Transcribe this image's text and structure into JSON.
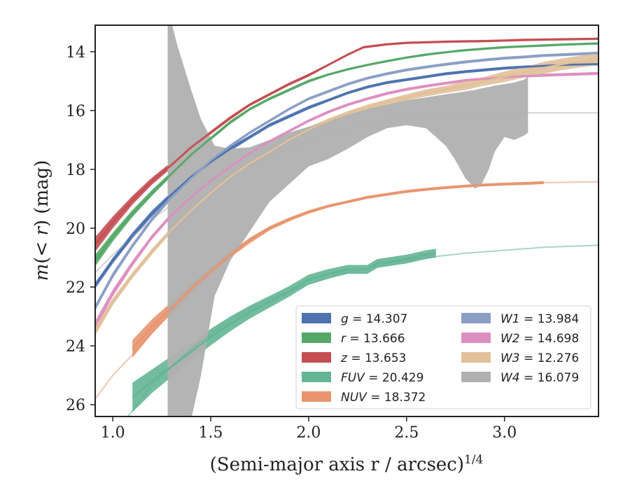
{
  "chart_data": {
    "type": "line",
    "xlabel": "(Semi-major axis r / arcsec)",
    "xlabel_superscript": "1/4",
    "ylabel": "m(< r) (mag)",
    "xlim": [
      0.91,
      3.48
    ],
    "ylim": [
      26.4,
      13.1
    ],
    "y_inverted": true,
    "xticks": [
      1.0,
      1.5,
      2.0,
      2.5,
      3.0
    ],
    "xtick_labels": [
      "1.0",
      "1.5",
      "2.0",
      "2.5",
      "3.0"
    ],
    "yticks": [
      14,
      16,
      18,
      20,
      22,
      24,
      26
    ],
    "ytick_labels": [
      "14",
      "16",
      "18",
      "20",
      "22",
      "24",
      "26"
    ],
    "grid": false,
    "legend_position": "lower-right",
    "legend_columns": 2,
    "series": [
      {
        "name": "g = 14.307",
        "label_var": "g",
        "label_val": "14.307",
        "color": "#4c72b0",
        "x": [
          0.91,
          1.0,
          1.1,
          1.2,
          1.3,
          1.4,
          1.5,
          1.6,
          1.7,
          1.8,
          1.9,
          2.0,
          2.1,
          2.2,
          2.3,
          2.4,
          2.5,
          2.6,
          2.7,
          2.8,
          2.9,
          3.0,
          3.1,
          3.2,
          3.3,
          3.48
        ],
        "y": [
          21.95,
          21.1,
          20.25,
          19.5,
          18.85,
          18.25,
          17.75,
          17.3,
          16.9,
          16.5,
          16.2,
          15.9,
          15.65,
          15.4,
          15.2,
          15.05,
          14.95,
          14.85,
          14.75,
          14.68,
          14.62,
          14.56,
          14.52,
          14.48,
          14.45,
          14.42
        ],
        "band": [
          0.1,
          0.1,
          0.1,
          0.1,
          0.08,
          0.08,
          0.08,
          0.08,
          0.06,
          0.06,
          0.06,
          0.06,
          0.05,
          0.05,
          0.05,
          0.05,
          0.05,
          0.05,
          0.05,
          0.05,
          0.05,
          0.05,
          0.05,
          0.05,
          0.05,
          0.05
        ],
        "ext_end": 3.48
      },
      {
        "name": "r = 13.666",
        "label_var": "r",
        "label_val": "13.666",
        "color": "#55a868",
        "x": [
          0.91,
          1.0,
          1.1,
          1.2,
          1.3,
          1.4,
          1.5,
          1.6,
          1.7,
          1.8,
          1.9,
          2.0,
          2.1,
          2.2,
          2.3,
          2.4,
          2.5,
          2.6,
          2.7,
          2.8,
          2.9,
          3.0,
          3.1,
          3.2,
          3.3,
          3.48
        ],
        "y": [
          21.1,
          20.3,
          19.5,
          18.8,
          18.15,
          17.5,
          16.95,
          16.4,
          15.95,
          15.6,
          15.3,
          15.0,
          14.78,
          14.6,
          14.45,
          14.32,
          14.2,
          14.1,
          14.02,
          13.95,
          13.9,
          13.85,
          13.82,
          13.79,
          13.76,
          13.72
        ],
        "band": [
          0.2,
          0.15,
          0.12,
          0.1,
          0.08,
          0.08,
          0.06,
          0.06,
          0.05,
          0.05,
          0.05,
          0.05,
          0.04,
          0.04,
          0.04,
          0.04,
          0.04,
          0.04,
          0.04,
          0.04,
          0.04,
          0.04,
          0.04,
          0.04,
          0.04,
          0.04
        ],
        "ext_end": 3.48
      },
      {
        "name": "z = 13.653",
        "label_var": "z",
        "label_val": "13.653",
        "color": "#c44e52",
        "x": [
          0.91,
          1.0,
          1.1,
          1.2,
          1.3,
          1.4,
          1.5,
          1.6,
          1.7,
          1.8,
          1.9,
          2.0,
          2.1,
          2.2,
          2.28,
          2.4,
          2.5,
          2.6,
          2.7,
          2.8,
          2.9,
          3.0,
          3.1,
          3.2,
          3.3,
          3.48
        ],
        "y": [
          20.55,
          19.8,
          19.05,
          18.4,
          17.85,
          17.25,
          16.75,
          16.25,
          15.8,
          15.45,
          15.1,
          14.8,
          14.45,
          14.1,
          13.85,
          13.75,
          13.7,
          13.68,
          13.66,
          13.65,
          13.64,
          13.62,
          13.6,
          13.59,
          13.58,
          13.56
        ],
        "band": [
          0.25,
          0.2,
          0.15,
          0.12,
          0.1,
          0.08,
          0.06,
          0.06,
          0.05,
          0.05,
          0.05,
          0.05,
          0.04,
          0.04,
          0.04,
          0.04,
          0.04,
          0.04,
          0.04,
          0.04,
          0.04,
          0.04,
          0.04,
          0.04,
          0.04,
          0.04
        ],
        "ext_end": 3.48
      },
      {
        "name": "FUV = 20.429",
        "label_var": "FUV",
        "label_val": "20.429",
        "color": "#64b596",
        "x": [
          1.1,
          1.2,
          1.3,
          1.4,
          1.5,
          1.6,
          1.7,
          1.8,
          1.9,
          2.0,
          2.1,
          2.2,
          2.3,
          2.35,
          2.4,
          2.5,
          2.6,
          2.65
        ],
        "y": [
          25.75,
          25.2,
          24.7,
          24.2,
          23.7,
          23.25,
          22.85,
          22.5,
          22.15,
          21.75,
          21.55,
          21.4,
          21.4,
          21.2,
          21.15,
          21.05,
          20.9,
          20.85
        ],
        "band": [
          0.5,
          0.4,
          0.35,
          0.3,
          0.28,
          0.25,
          0.22,
          0.2,
          0.18,
          0.17,
          0.16,
          0.15,
          0.15,
          0.15,
          0.15,
          0.15,
          0.15,
          0.15
        ],
        "ext_x": [
          0.91,
          1.0,
          1.1,
          1.2,
          1.4,
          1.6,
          1.8,
          2.0,
          2.2,
          2.4,
          2.6,
          2.8,
          3.0,
          3.2,
          3.48
        ],
        "ext_y": [
          27.5,
          27.0,
          26.2,
          25.3,
          24.1,
          23.1,
          22.4,
          21.9,
          21.5,
          21.2,
          21.0,
          20.85,
          20.75,
          20.65,
          20.58
        ]
      },
      {
        "name": "NUV = 18.372",
        "label_var": "NUV",
        "label_val": "18.372",
        "color": "#e8956f",
        "x": [
          1.1,
          1.2,
          1.3,
          1.4,
          1.5,
          1.6,
          1.7,
          1.8,
          1.9,
          2.0,
          2.1,
          2.2,
          2.3,
          2.4,
          2.5,
          2.6,
          2.7,
          2.8,
          2.9,
          3.0,
          3.1,
          3.2
        ],
        "y": [
          24.1,
          23.35,
          22.7,
          22.05,
          21.45,
          20.9,
          20.4,
          20.0,
          19.7,
          19.45,
          19.25,
          19.1,
          18.95,
          18.85,
          18.75,
          18.68,
          18.62,
          18.57,
          18.53,
          18.5,
          18.48,
          18.45
        ],
        "band": [
          0.3,
          0.25,
          0.2,
          0.15,
          0.12,
          0.1,
          0.08,
          0.07,
          0.06,
          0.06,
          0.05,
          0.05,
          0.05,
          0.05,
          0.05,
          0.05,
          0.05,
          0.05,
          0.05,
          0.05,
          0.05,
          0.05
        ],
        "ext_x": [
          0.91,
          1.0,
          1.1,
          1.2,
          1.3,
          1.4,
          1.5,
          1.6,
          1.8,
          2.0,
          2.2,
          2.4,
          2.6,
          2.8,
          3.0,
          3.2,
          3.48
        ],
        "ext_y": [
          25.8,
          25.0,
          24.3,
          23.5,
          22.8,
          22.1,
          21.5,
          20.95,
          20.05,
          19.45,
          19.1,
          18.85,
          18.68,
          18.57,
          18.5,
          18.45,
          18.42
        ]
      },
      {
        "name": "W1 = 13.984",
        "label_var": "W1",
        "label_val": "13.984",
        "color": "#8c9ec4",
        "x": [
          0.91,
          1.0,
          1.1,
          1.2,
          1.3,
          1.4,
          1.5,
          1.6,
          1.7,
          1.8,
          1.9,
          2.0,
          2.1,
          2.2,
          2.3,
          2.4,
          2.5,
          2.6,
          2.7,
          2.8,
          2.9,
          3.0,
          3.1,
          3.2,
          3.48
        ],
        "y": [
          22.7,
          21.6,
          20.6,
          19.7,
          18.95,
          18.3,
          17.7,
          17.2,
          16.75,
          16.35,
          15.95,
          15.6,
          15.35,
          15.1,
          14.9,
          14.75,
          14.62,
          14.52,
          14.43,
          14.35,
          14.28,
          14.22,
          14.18,
          14.13,
          14.05
        ],
        "band": [
          0.1,
          0.1,
          0.08,
          0.08,
          0.06,
          0.06,
          0.05,
          0.05,
          0.05,
          0.05,
          0.05,
          0.05,
          0.05,
          0.05,
          0.05,
          0.05,
          0.05,
          0.05,
          0.05,
          0.05,
          0.05,
          0.05,
          0.05,
          0.05,
          0.05
        ],
        "ext_end": 3.48
      },
      {
        "name": "W2 = 14.698",
        "label_var": "W2",
        "label_val": "14.698",
        "color": "#dd8ec0",
        "x": [
          0.91,
          1.0,
          1.1,
          1.2,
          1.3,
          1.4,
          1.5,
          1.6,
          1.7,
          1.8,
          1.9,
          2.0,
          2.1,
          2.2,
          2.3,
          2.4,
          2.5,
          2.6,
          2.7,
          2.8,
          2.9,
          3.0,
          3.1,
          3.2,
          3.48
        ],
        "y": [
          23.3,
          22.2,
          21.2,
          20.3,
          19.55,
          18.95,
          18.4,
          17.9,
          17.45,
          17.05,
          16.7,
          16.35,
          16.05,
          15.8,
          15.6,
          15.42,
          15.28,
          15.17,
          15.07,
          14.98,
          14.92,
          14.87,
          14.83,
          14.8,
          14.74
        ],
        "band": [
          0.15,
          0.12,
          0.1,
          0.08,
          0.07,
          0.06,
          0.06,
          0.05,
          0.05,
          0.05,
          0.05,
          0.05,
          0.05,
          0.05,
          0.05,
          0.05,
          0.05,
          0.05,
          0.05,
          0.05,
          0.05,
          0.05,
          0.05,
          0.05,
          0.05
        ],
        "ext_end": 3.48
      },
      {
        "name": "W3 = 12.276",
        "label_var": "W3",
        "label_val": "12.276",
        "color": "#e1c09a",
        "x": [
          0.91,
          1.0,
          1.1,
          1.2,
          1.3,
          1.4,
          1.5,
          1.6,
          1.7,
          1.8,
          1.9,
          2.0,
          2.1,
          2.2,
          2.3,
          2.4,
          2.5,
          2.6,
          2.7,
          2.8,
          2.9,
          3.0,
          3.1,
          3.2,
          3.3,
          3.48
        ],
        "y": [
          23.5,
          22.5,
          21.6,
          20.8,
          20.05,
          19.4,
          18.8,
          18.25,
          17.8,
          17.4,
          17.0,
          16.65,
          16.35,
          16.1,
          15.9,
          15.72,
          15.55,
          15.4,
          15.28,
          15.15,
          15.0,
          14.85,
          14.7,
          14.55,
          14.42,
          14.25
        ],
        "band": [
          0.15,
          0.12,
          0.1,
          0.1,
          0.08,
          0.08,
          0.08,
          0.08,
          0.08,
          0.08,
          0.08,
          0.08,
          0.08,
          0.08,
          0.1,
          0.1,
          0.1,
          0.12,
          0.12,
          0.15,
          0.15,
          0.18,
          0.18,
          0.2,
          0.2,
          0.2
        ],
        "ext_end": 3.48
      },
      {
        "name": "W4 = 16.079",
        "label_var": "W4",
        "label_val": "16.079",
        "color": "#b0b0b0",
        "band_x": [
          1.28,
          1.33,
          1.4,
          1.45,
          1.52,
          1.6,
          1.7,
          1.8,
          1.9,
          2.0,
          2.1,
          2.2,
          2.3,
          2.4,
          2.5,
          2.6,
          2.7,
          2.75,
          2.8,
          2.85,
          2.88,
          2.92,
          2.95,
          3.0,
          3.05,
          3.1,
          3.12
        ],
        "band_upper": [
          12.5,
          13.8,
          15.3,
          16.3,
          17.2,
          17.3,
          17.25,
          17.0,
          16.75,
          16.55,
          16.35,
          16.15,
          15.95,
          15.8,
          15.65,
          15.55,
          15.45,
          15.4,
          15.35,
          15.3,
          15.25,
          15.2,
          15.15,
          15.1,
          15.05,
          14.95,
          14.85
        ],
        "band_lower": [
          27.5,
          27.3,
          26.5,
          25.0,
          22.3,
          21.1,
          20.1,
          19.1,
          18.5,
          17.9,
          17.65,
          17.3,
          16.9,
          16.6,
          16.5,
          16.6,
          17.2,
          17.7,
          18.3,
          18.65,
          18.55,
          18.0,
          17.4,
          16.9,
          17.0,
          16.85,
          16.75
        ],
        "ext_x": [
          0.91,
          1.0,
          1.1,
          1.2,
          1.3,
          1.45,
          1.6,
          1.8,
          2.0,
          2.2,
          2.4,
          2.6,
          2.8,
          3.0,
          3.2,
          3.48
        ],
        "ext_y": [
          21.5,
          20.9,
          20.3,
          19.7,
          19.2,
          18.6,
          18.2,
          17.6,
          17.0,
          16.6,
          16.3,
          16.1,
          16.08,
          16.08,
          16.08,
          16.08
        ]
      }
    ]
  }
}
